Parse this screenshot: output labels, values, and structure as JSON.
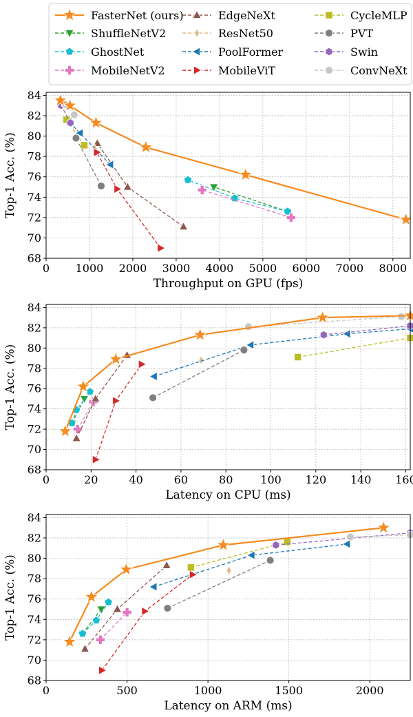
{
  "legend": {
    "placement": "top",
    "entries": [
      {
        "name": "FasterNet (ours)",
        "color": "#f58b1f",
        "marker": "star"
      },
      {
        "name": "EdgeNeXt",
        "color": "#8c564b",
        "marker": "triangle-up"
      },
      {
        "name": "CycleMLP",
        "color": "#bcbd22",
        "marker": "square"
      },
      {
        "name": "ShuffleNetV2",
        "color": "#2ca02c",
        "marker": "triangle-down"
      },
      {
        "name": "ResNet50",
        "color": "#e0b98a",
        "marker": "thin-diamond"
      },
      {
        "name": "PVT",
        "color": "#7f7f7f",
        "marker": "circle"
      },
      {
        "name": "GhostNet",
        "color": "#17becf",
        "marker": "pentagon"
      },
      {
        "name": "PoolFormer",
        "color": "#1f77b4",
        "marker": "triangle-left"
      },
      {
        "name": "Swin",
        "color": "#9467bd",
        "marker": "hexagon"
      },
      {
        "name": "MobileNetV2",
        "color": "#e377c2",
        "marker": "plus"
      },
      {
        "name": "MobileViT",
        "color": "#d62728",
        "marker": "triangle-right"
      },
      {
        "name": "ConvNeXt",
        "color": "#c7c7c7",
        "marker": "circle"
      }
    ]
  },
  "chart_data": [
    {
      "type": "line",
      "xlabel": "Throughput on GPU (fps)",
      "ylabel": "Top-1 Acc. (%)",
      "xlim": [
        0,
        8400
      ],
      "ylim": [
        68,
        84.3
      ],
      "xticks": [
        0,
        1000,
        2000,
        3000,
        4000,
        5000,
        6000,
        7000,
        8000
      ],
      "yticks": [
        68,
        70,
        72,
        74,
        76,
        78,
        80,
        82,
        84
      ],
      "grid": true,
      "series": [
        {
          "name": "FasterNet (ours)",
          "points": [
            [
              8300,
              71.8
            ],
            [
              4600,
              76.2
            ],
            [
              2300,
              78.9
            ],
            [
              1150,
              81.3
            ],
            [
              550,
              83.0
            ],
            [
              330,
              83.5
            ]
          ]
        },
        {
          "name": "ShuffleNetV2",
          "points": [
            [
              5570,
              72.6
            ],
            [
              3870,
              75.0
            ]
          ]
        },
        {
          "name": "GhostNet",
          "points": [
            [
              5570,
              72.6
            ],
            [
              4350,
              73.9
            ],
            [
              3270,
              75.7
            ]
          ]
        },
        {
          "name": "MobileNetV2",
          "points": [
            [
              5650,
              72.0
            ],
            [
              3600,
              74.7
            ]
          ]
        },
        {
          "name": "EdgeNeXt",
          "points": [
            [
              3170,
              71.1
            ],
            [
              1880,
              75.0
            ],
            [
              1180,
              79.3
            ]
          ]
        },
        {
          "name": "ResNet50",
          "points": [
            [
              1120,
              78.8
            ]
          ]
        },
        {
          "name": "PoolFormer",
          "points": [
            [
              1480,
              77.2
            ],
            [
              780,
              80.3
            ],
            [
              530,
              81.4
            ]
          ]
        },
        {
          "name": "MobileViT",
          "points": [
            [
              2640,
              69.0
            ],
            [
              1640,
              74.8
            ],
            [
              1170,
              78.4
            ]
          ]
        },
        {
          "name": "CycleMLP",
          "points": [
            [
              880,
              79.1
            ],
            [
              470,
              81.6
            ]
          ]
        },
        {
          "name": "PVT",
          "points": [
            [
              1270,
              75.1
            ],
            [
              690,
              79.8
            ]
          ]
        },
        {
          "name": "Swin",
          "points": [
            [
              560,
              81.3
            ],
            [
              350,
              83.0
            ]
          ]
        },
        {
          "name": "ConvNeXt",
          "points": [
            [
              650,
              82.1
            ],
            [
              440,
              83.1
            ]
          ]
        }
      ]
    },
    {
      "type": "line",
      "xlabel": "Latency on CPU (ms)",
      "ylabel": "Top-1 Acc. (%)",
      "xlim": [
        0,
        162
      ],
      "ylim": [
        68,
        84.3
      ],
      "xticks": [
        0,
        20,
        40,
        60,
        80,
        100,
        120,
        140,
        160
      ],
      "yticks": [
        68,
        70,
        72,
        74,
        76,
        78,
        80,
        82,
        84
      ],
      "grid": true,
      "series": [
        {
          "name": "FasterNet (ours)",
          "points": [
            [
              8.5,
              71.8
            ],
            [
              16.5,
              76.2
            ],
            [
              31,
              78.9
            ],
            [
              68.5,
              81.3
            ],
            [
              123,
              83.0
            ],
            [
              162,
              83.2
            ]
          ]
        },
        {
          "name": "ShuffleNetV2",
          "points": [
            [
              11.5,
              72.6
            ],
            [
              17,
              75.0
            ]
          ]
        },
        {
          "name": "GhostNet",
          "points": [
            [
              11.5,
              72.6
            ],
            [
              13.5,
              73.9
            ],
            [
              19.5,
              75.7
            ]
          ]
        },
        {
          "name": "MobileNetV2",
          "points": [
            [
              14,
              72.0
            ],
            [
              21,
              74.7
            ]
          ]
        },
        {
          "name": "EdgeNeXt",
          "points": [
            [
              13.5,
              71.1
            ],
            [
              22,
              75.0
            ],
            [
              36,
              79.3
            ]
          ]
        },
        {
          "name": "ResNet50",
          "points": [
            [
              69,
              78.8
            ]
          ]
        },
        {
          "name": "PoolFormer",
          "points": [
            [
              48,
              77.2
            ],
            [
              91,
              80.3
            ],
            [
              134,
              81.4
            ],
            [
              162,
              81.9
            ]
          ]
        },
        {
          "name": "MobileViT",
          "points": [
            [
              22,
              69.0
            ],
            [
              31,
              74.8
            ],
            [
              42.5,
              78.4
            ]
          ]
        },
        {
          "name": "CycleMLP",
          "points": [
            [
              112,
              79.1
            ],
            [
              162,
              81.0
            ]
          ]
        },
        {
          "name": "PVT",
          "points": [
            [
              47.5,
              75.1
            ],
            [
              88,
              79.8
            ]
          ]
        },
        {
          "name": "Swin",
          "points": [
            [
              123.5,
              81.3
            ],
            [
              162,
              82.2
            ]
          ]
        },
        {
          "name": "ConvNeXt",
          "points": [
            [
              90,
              82.1
            ],
            [
              158,
              83.1
            ]
          ]
        }
      ]
    },
    {
      "type": "line",
      "xlabel": "Latency on ARM (ms)",
      "ylabel": "Top-1 Acc. (%)",
      "xlim": [
        0,
        2250
      ],
      "ylim": [
        68,
        84.3
      ],
      "xticks": [
        0,
        500,
        1000,
        1500,
        2000
      ],
      "yticks": [
        68,
        70,
        72,
        74,
        76,
        78,
        80,
        82,
        84
      ],
      "grid": true,
      "series": [
        {
          "name": "FasterNet (ours)",
          "points": [
            [
              145,
              71.8
            ],
            [
              280,
              76.2
            ],
            [
              495,
              78.9
            ],
            [
              1095,
              81.3
            ],
            [
              2085,
              83.0
            ]
          ]
        },
        {
          "name": "ShuffleNetV2",
          "points": [
            [
              225,
              72.6
            ],
            [
              340,
              75.0
            ]
          ]
        },
        {
          "name": "GhostNet",
          "points": [
            [
              225,
              72.6
            ],
            [
              310,
              73.9
            ],
            [
              385,
              75.7
            ]
          ]
        },
        {
          "name": "MobileNetV2",
          "points": [
            [
              335,
              72.0
            ],
            [
              500,
              74.7
            ]
          ]
        },
        {
          "name": "EdgeNeXt",
          "points": [
            [
              240,
              71.1
            ],
            [
              440,
              75.0
            ],
            [
              745,
              79.3
            ]
          ]
        },
        {
          "name": "ResNet50",
          "points": [
            [
              1130,
              78.8
            ]
          ]
        },
        {
          "name": "PoolFormer",
          "points": [
            [
              665,
              77.2
            ],
            [
              1270,
              80.3
            ],
            [
              1860,
              81.4
            ]
          ]
        },
        {
          "name": "MobileViT",
          "points": [
            [
              345,
              69.0
            ],
            [
              610,
              74.8
            ],
            [
              905,
              78.4
            ]
          ]
        },
        {
          "name": "CycleMLP",
          "points": [
            [
              895,
              79.1
            ],
            [
              1490,
              81.6
            ]
          ]
        },
        {
          "name": "PVT",
          "points": [
            [
              750,
              75.1
            ],
            [
              1385,
              79.8
            ]
          ]
        },
        {
          "name": "Swin",
          "points": [
            [
              1420,
              81.3
            ],
            [
              2250,
              82.5
            ]
          ]
        },
        {
          "name": "ConvNeXt",
          "points": [
            [
              1880,
              82.1
            ],
            [
              2250,
              82.3
            ]
          ]
        }
      ]
    }
  ]
}
